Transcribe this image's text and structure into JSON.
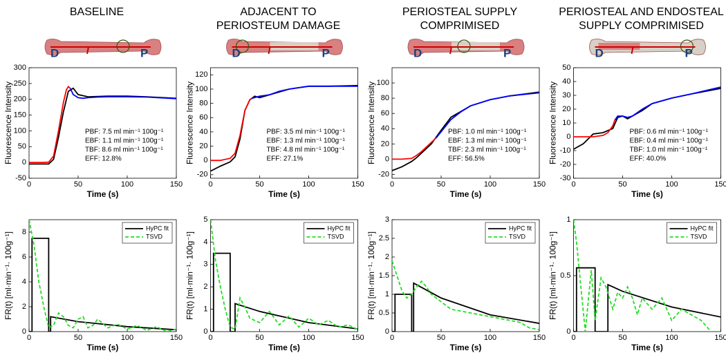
{
  "chart_data": [
    {
      "type": "line",
      "title": [
        "BASELINE"
      ],
      "diagram_labels": [
        "D",
        "P"
      ],
      "damage": 0,
      "xlabel": "Time (s)",
      "ylabel": "Fluorescence Intensity",
      "xlim": [
        0,
        150
      ],
      "xticks": [
        0,
        50,
        100,
        150
      ],
      "ylim": [
        -50,
        300
      ],
      "yticks": [
        -50,
        0,
        50,
        100,
        150,
        200,
        250,
        300
      ],
      "annotations": [
        "PBF: 7.5 ml min⁻¹ 100g⁻¹",
        "EBF: 1.1 ml min⁻¹ 100g⁻¹",
        "TBF: 8.6 ml min⁻¹ 100g⁻¹",
        "EFF: 12.8%"
      ],
      "series": [
        {
          "color": "#000000",
          "x": [
            0,
            10,
            20,
            25,
            30,
            35,
            40,
            45,
            50,
            60,
            80,
            100,
            120,
            150
          ],
          "values": [
            -5,
            -5,
            -5,
            10,
            80,
            160,
            225,
            235,
            215,
            208,
            210,
            210,
            208,
            203
          ]
        },
        {
          "color": "#ff0000",
          "x": [
            0,
            5,
            10,
            15,
            20,
            25,
            30,
            35,
            38,
            40,
            42
          ],
          "values": [
            0,
            0,
            0,
            0,
            1,
            20,
            100,
            190,
            230,
            240,
            235
          ]
        },
        {
          "color": "#0000ff",
          "x": [
            42,
            45,
            50,
            55,
            60,
            70,
            80,
            100,
            120,
            150
          ],
          "values": [
            235,
            215,
            205,
            203,
            205,
            207,
            208,
            208,
            207,
            202
          ]
        }
      ]
    },
    {
      "type": "line",
      "title": [
        "ADJACENT TO",
        "PERIOSTEUM DAMAGE"
      ],
      "diagram_labels": [
        "D",
        "P"
      ],
      "damage": 1,
      "xlabel": "Time (s)",
      "ylabel": "Fluorescence Intensity",
      "xlim": [
        0,
        150
      ],
      "xticks": [
        0,
        50,
        100,
        150
      ],
      "ylim": [
        -25,
        130
      ],
      "yticks": [
        -20,
        0,
        20,
        40,
        60,
        80,
        100,
        120
      ],
      "annotations": [
        "PBF: 3.5 ml min⁻¹ 100g⁻¹",
        "EBF: 1.3 ml min⁻¹ 100g⁻¹",
        "TBF: 4.8 ml min⁻¹ 100g⁻¹",
        "EFF: 27.1%"
      ],
      "series": [
        {
          "color": "#000000",
          "x": [
            0,
            10,
            20,
            25,
            30,
            35,
            40,
            45,
            50,
            60,
            80,
            100,
            120,
            150
          ],
          "values": [
            -15,
            -8,
            -2,
            5,
            30,
            70,
            85,
            90,
            88,
            92,
            100,
            104,
            104,
            105
          ]
        },
        {
          "color": "#ff0000",
          "x": [
            0,
            10,
            20,
            25,
            30,
            35,
            40,
            42
          ],
          "values": [
            0,
            0,
            3,
            10,
            35,
            70,
            85,
            87
          ]
        },
        {
          "color": "#0000ff",
          "x": [
            42,
            50,
            60,
            70,
            80,
            100,
            120,
            150
          ],
          "values": [
            87,
            90,
            92,
            97,
            100,
            104,
            104,
            104
          ]
        }
      ]
    },
    {
      "type": "line",
      "title": [
        "PERIOSTEAL SUPPLY",
        "COMPRIMISED"
      ],
      "diagram_labels": [
        "D",
        "P"
      ],
      "damage": 2,
      "xlabel": "Time (s)",
      "ylabel": "Fluorescence Intensity",
      "xlim": [
        0,
        150
      ],
      "xticks": [
        0,
        50,
        100,
        150
      ],
      "ylim": [
        -25,
        120
      ],
      "yticks": [
        -20,
        0,
        20,
        40,
        60,
        80,
        100
      ],
      "annotations": [
        "PBF: 1.0 ml min⁻¹ 100g⁻¹",
        "EBF: 1.3 ml min⁻¹ 100g⁻¹",
        "TBF: 2.3 ml min⁻¹ 100g⁻¹",
        "EFF: 56.5%"
      ],
      "series": [
        {
          "color": "#000000",
          "x": [
            0,
            10,
            20,
            25,
            30,
            40,
            50,
            60,
            80,
            100,
            120,
            150
          ],
          "values": [
            -15,
            -10,
            -3,
            2,
            8,
            20,
            38,
            55,
            70,
            78,
            83,
            88
          ]
        },
        {
          "color": "#ff0000",
          "x": [
            0,
            10,
            20,
            25,
            30,
            40,
            45
          ],
          "values": [
            0,
            0,
            1,
            5,
            10,
            22,
            28
          ]
        },
        {
          "color": "#0000ff",
          "x": [
            45,
            50,
            60,
            70,
            80,
            100,
            120,
            150
          ],
          "values": [
            28,
            36,
            52,
            62,
            70,
            78,
            83,
            87
          ]
        }
      ]
    },
    {
      "type": "line",
      "title": [
        "PERIOSTEAL AND ENDOSTEAL",
        "SUPPLY COMPRIMISED"
      ],
      "diagram_labels": [
        "D",
        "P"
      ],
      "damage": 3,
      "xlabel": "Time (s)",
      "ylabel": "Fluorescence Intensity",
      "xlim": [
        0,
        150
      ],
      "xticks": [
        0,
        50,
        100,
        150
      ],
      "ylim": [
        -30,
        50
      ],
      "yticks": [
        -30,
        -20,
        -10,
        0,
        10,
        20,
        30,
        40,
        50
      ],
      "annotations": [
        "PBF: 0.6 ml min⁻¹ 100g⁻¹",
        "EBF: 0.4 ml min⁻¹ 100g⁻¹",
        "TBF: 1.0 ml min⁻¹ 100g⁻¹",
        "EFF: 40.0%"
      ],
      "series": [
        {
          "color": "#000000",
          "x": [
            0,
            10,
            20,
            30,
            40,
            45,
            50,
            55,
            60,
            70,
            80,
            100,
            120,
            150
          ],
          "values": [
            -9,
            -5,
            2,
            3,
            6,
            14,
            15,
            13,
            15,
            19,
            24,
            28,
            31,
            35
          ]
        },
        {
          "color": "#ff0000",
          "x": [
            0,
            10,
            20,
            30,
            35,
            40,
            42
          ],
          "values": [
            0,
            0,
            0,
            1,
            3,
            8,
            12
          ]
        },
        {
          "color": "#0000ff",
          "x": [
            42,
            45,
            50,
            55,
            60,
            70,
            80,
            100,
            120,
            150
          ],
          "values": [
            12,
            15,
            15,
            14,
            15,
            20,
            24,
            28,
            31,
            36
          ]
        }
      ]
    },
    {
      "type": "line",
      "xlabel": "Time (s)",
      "ylabel": "FR(t) [ml·min⁻¹· 100g⁻¹]",
      "legend": "upper right",
      "xlim": [
        0,
        150
      ],
      "xticks": [
        0,
        50,
        100,
        150
      ],
      "ylim": [
        0,
        9
      ],
      "yticks": [
        0,
        2,
        4,
        6,
        8
      ],
      "series": [
        {
          "name": "HyPC fit",
          "color": "#000000",
          "linestyle": "solid",
          "x": [
            0,
            3,
            3,
            20,
            20,
            22,
            22,
            50,
            100,
            150
          ],
          "values": [
            0,
            0,
            7.5,
            7.5,
            0,
            0,
            1.2,
            0.8,
            0.4,
            0.15
          ]
        },
        {
          "name": "TSVD",
          "color": "#22dd22",
          "linestyle": "dashed",
          "x": [
            0,
            5,
            10,
            15,
            20,
            25,
            30,
            35,
            40,
            45,
            50,
            55,
            60,
            65,
            70,
            80,
            90,
            100,
            110,
            120,
            130,
            140,
            150
          ],
          "values": [
            9,
            7,
            4,
            2,
            0.3,
            0.5,
            1.5,
            1.2,
            0.5,
            0.3,
            1,
            1.2,
            0.3,
            0.5,
            1,
            0.3,
            0.6,
            0.2,
            0.5,
            0.1,
            0.4,
            0,
            0.2
          ]
        }
      ]
    },
    {
      "type": "line",
      "xlabel": "Time (s)",
      "ylabel": "FR(t) [ml·min⁻¹· 100g⁻¹]",
      "legend": "upper right",
      "xlim": [
        0,
        150
      ],
      "xticks": [
        0,
        50,
        100,
        150
      ],
      "ylim": [
        0,
        5
      ],
      "yticks": [
        0,
        1,
        2,
        3,
        4,
        5
      ],
      "series": [
        {
          "name": "HyPC fit",
          "color": "#000000",
          "linestyle": "solid",
          "x": [
            0,
            3,
            3,
            20,
            20,
            25,
            25,
            50,
            100,
            150
          ],
          "values": [
            0,
            0,
            3.5,
            3.5,
            0,
            0,
            1.25,
            0.9,
            0.4,
            0.12
          ]
        },
        {
          "name": "TSVD",
          "color": "#22dd22",
          "linestyle": "dashed",
          "x": [
            0,
            5,
            10,
            15,
            20,
            25,
            30,
            35,
            40,
            50,
            60,
            70,
            80,
            90,
            100,
            110,
            120,
            130,
            140,
            150
          ],
          "values": [
            5,
            3.2,
            2,
            1,
            0.2,
            0.1,
            1.5,
            1.1,
            0.6,
            0.4,
            0.9,
            0.3,
            0.7,
            0.2,
            0.6,
            0.3,
            0.5,
            0.2,
            0.3,
            0.1
          ]
        }
      ]
    },
    {
      "type": "line",
      "xlabel": "Time (s)",
      "ylabel": "FR(t) [ml·min⁻¹· 100g⁻¹]",
      "legend": "upper right",
      "xlim": [
        0,
        150
      ],
      "xticks": [
        0,
        50,
        100,
        150
      ],
      "ylim": [
        0,
        3
      ],
      "yticks": [
        0,
        0.5,
        1,
        1.5,
        2,
        2.5,
        3
      ],
      "series": [
        {
          "name": "HyPC fit",
          "color": "#000000",
          "linestyle": "solid",
          "x": [
            0,
            3,
            3,
            20,
            20,
            22,
            22,
            50,
            100,
            150
          ],
          "values": [
            0,
            0,
            1,
            1,
            0,
            0,
            1.3,
            0.9,
            0.45,
            0.22
          ]
        },
        {
          "name": "TSVD",
          "color": "#22dd22",
          "linestyle": "dashed",
          "x": [
            0,
            5,
            10,
            15,
            20,
            25,
            30,
            35,
            40,
            50,
            60,
            70,
            80,
            90,
            100,
            110,
            120,
            130,
            140,
            150
          ],
          "values": [
            1.9,
            1.5,
            1.1,
            0.9,
            1,
            1.2,
            1.35,
            1.2,
            1,
            0.8,
            0.6,
            0.55,
            0.5,
            0.45,
            0.4,
            0.35,
            0.3,
            0.25,
            0.1,
            0.05
          ]
        }
      ]
    },
    {
      "type": "line",
      "xlabel": "Time (s)",
      "ylabel": "FR(t) [ml·min⁻¹· 100g⁻¹]",
      "legend": "upper right",
      "xlim": [
        0,
        150
      ],
      "xticks": [
        0,
        50,
        100,
        150
      ],
      "ylim": [
        0,
        1
      ],
      "yticks": [
        0,
        0.5,
        1
      ],
      "series": [
        {
          "name": "HyPC fit",
          "color": "#000000",
          "linestyle": "solid",
          "x": [
            0,
            3,
            3,
            22,
            22,
            35,
            35,
            50,
            100,
            150
          ],
          "values": [
            0,
            0,
            0.57,
            0.57,
            0,
            0,
            0.42,
            0.36,
            0.22,
            0.13
          ]
        },
        {
          "name": "TSVD",
          "color": "#22dd22",
          "linestyle": "dashed",
          "x": [
            0,
            3,
            8,
            12,
            18,
            22,
            28,
            33,
            40,
            45,
            50,
            55,
            60,
            65,
            70,
            80,
            90,
            100,
            110,
            120,
            130,
            140,
            150
          ],
          "values": [
            1,
            0.8,
            0.35,
            0,
            0.55,
            0.1,
            0.48,
            0.4,
            0.2,
            0.35,
            0.3,
            0.4,
            0.3,
            0.15,
            0.3,
            0.2,
            0.3,
            0.1,
            0.2,
            0.15,
            0.1,
            0,
            0
          ]
        }
      ]
    }
  ]
}
